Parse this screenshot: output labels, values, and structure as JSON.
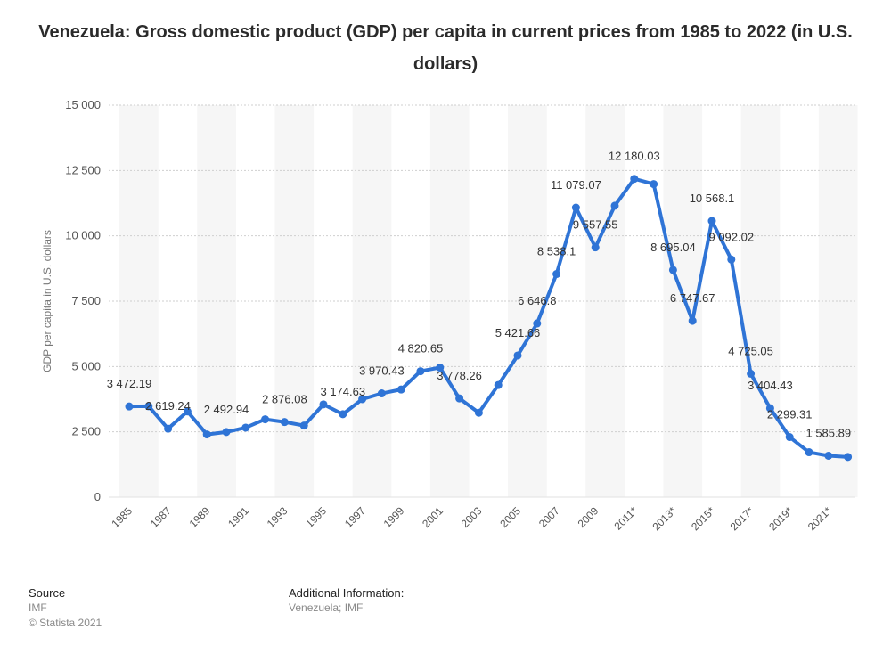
{
  "chart_data": {
    "type": "line",
    "title": "Venezuela: Gross domestic product (GDP) per capita in current prices from 1985 to 2022 (in U.S. dollars)",
    "xlabel": "",
    "ylabel": "GDP per capita in U.S. dollars",
    "ylim": [
      0,
      15000
    ],
    "y_ticks": [
      0,
      2500,
      5000,
      7500,
      10000,
      12500,
      15000
    ],
    "y_tick_labels": [
      "0",
      "2 500",
      "5 000",
      "7 500",
      "10 000",
      "12 500",
      "15 000"
    ],
    "x_tick_labels": [
      "1985",
      "1987",
      "1989",
      "1991",
      "1993",
      "1995",
      "1997",
      "1999",
      "2001",
      "2003",
      "2005",
      "2007",
      "2009",
      "2011*",
      "2013*",
      "2015*",
      "2017*",
      "2019*",
      "2021*"
    ],
    "grid": true,
    "line_color": "#2f74d6",
    "categories": [
      "1985",
      "1986",
      "1987",
      "1988",
      "1989",
      "1990",
      "1991",
      "1992",
      "1993",
      "1994",
      "1995",
      "1996",
      "1997",
      "1998",
      "1999",
      "2000",
      "2001",
      "2002",
      "2003",
      "2004",
      "2005",
      "2006",
      "2007",
      "2008",
      "2009",
      "2010",
      "2011*",
      "2012*",
      "2013*",
      "2014*",
      "2015*",
      "2016*",
      "2017*",
      "2018*",
      "2019*",
      "2020*",
      "2021*",
      "2022*"
    ],
    "values": [
      3472.19,
      3480,
      2619.24,
      3280,
      2400,
      2492.94,
      2660,
      2980,
      2876.08,
      2740,
      3550,
      3174.63,
      3750,
      3970.43,
      4120,
      4820.65,
      4960,
      3778.26,
      3230,
      4290,
      5421.66,
      6646.8,
      8538.1,
      11079.07,
      9557.55,
      11150,
      12180.03,
      11980,
      8695.04,
      6747.67,
      10568.1,
      9092.02,
      4725.05,
      3404.43,
      2299.31,
      1720,
      1585.89,
      1540
    ],
    "data_labels": [
      {
        "index": 0,
        "text": "3 472.19"
      },
      {
        "index": 2,
        "text": "2 619.24"
      },
      {
        "index": 5,
        "text": "2 492.94"
      },
      {
        "index": 8,
        "text": "2 876.08"
      },
      {
        "index": 11,
        "text": "3 174.63"
      },
      {
        "index": 13,
        "text": "3 970.43"
      },
      {
        "index": 15,
        "text": "4 820.65"
      },
      {
        "index": 17,
        "text": "3 778.26"
      },
      {
        "index": 20,
        "text": "5 421.66"
      },
      {
        "index": 21,
        "text": "6 646.8"
      },
      {
        "index": 22,
        "text": "8 538.1"
      },
      {
        "index": 23,
        "text": "11 079.07"
      },
      {
        "index": 24,
        "text": "9 557.55"
      },
      {
        "index": 26,
        "text": "12 180.03"
      },
      {
        "index": 28,
        "text": "8 695.04"
      },
      {
        "index": 29,
        "text": "6 747.67"
      },
      {
        "index": 30,
        "text": "10 568.1"
      },
      {
        "index": 31,
        "text": "9 092.02"
      },
      {
        "index": 32,
        "text": "4 725.05"
      },
      {
        "index": 33,
        "text": "3 404.43"
      },
      {
        "index": 34,
        "text": "2 299.31"
      },
      {
        "index": 36,
        "text": "1 585.89"
      }
    ]
  },
  "footer": {
    "source_heading": "Source",
    "source_lines": [
      "IMF",
      "© Statista 2021"
    ],
    "info_heading": "Additional Information:",
    "info_text": "Venezuela; IMF"
  }
}
